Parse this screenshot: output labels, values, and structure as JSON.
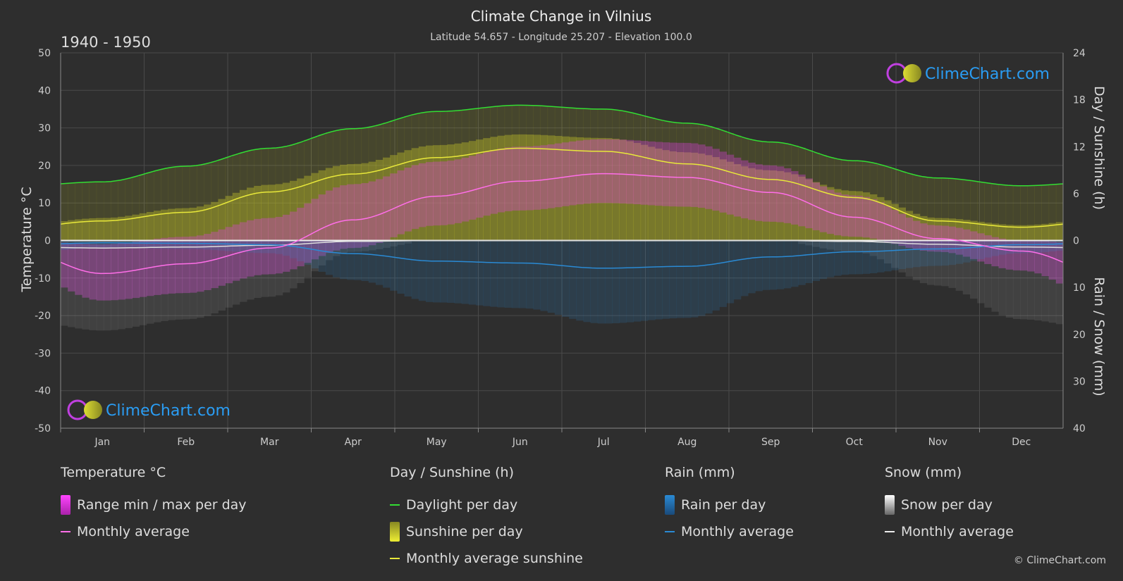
{
  "title": "Climate Change in Vilnius",
  "subtitle": "Latitude 54.657 - Longitude 25.207 - Elevation 100.0",
  "period": "1940 - 1950",
  "brand": "ClimeChart.com",
  "copyright": "© ClimeChart.com",
  "colors": {
    "background": "#2e2e2e",
    "temp_avg": "#ff6ee8",
    "temp_range": "#e040e0",
    "daylight": "#33dd33",
    "sunshine_avg": "#e8e83a",
    "sunshine_bar": "#b5b52a",
    "rain": "#2a8ad4",
    "snow": "#cccccc",
    "brand_text": "#2a9df4"
  },
  "chart_data": {
    "type": "line",
    "x": [
      "Jan",
      "Feb",
      "Mar",
      "Apr",
      "May",
      "Jun",
      "Jul",
      "Aug",
      "Sep",
      "Oct",
      "Nov",
      "Dec"
    ],
    "axes": {
      "left": {
        "label": "Temperature °C",
        "min": -50,
        "max": 50,
        "ticks": [
          "50",
          "40",
          "30",
          "20",
          "10",
          "0",
          "-10",
          "-20",
          "-30",
          "-40",
          "-50"
        ]
      },
      "right_top": {
        "label": "Day / Sunshine (h)",
        "min": 0,
        "max": 24,
        "ticks": [
          "24",
          "18",
          "12",
          "6",
          "0"
        ]
      },
      "right_bottom": {
        "label": "Rain / Snow (mm)",
        "min": 0,
        "max": 40,
        "ticks": [
          "10",
          "20",
          "30",
          "40"
        ]
      }
    },
    "series": [
      {
        "name": "Daylight per day",
        "unit": "h",
        "values": [
          7.5,
          9.5,
          11.8,
          14.3,
          16.5,
          17.3,
          16.8,
          15.0,
          12.6,
          10.2,
          8.0,
          7.0
        ]
      },
      {
        "name": "Monthly average sunshine",
        "unit": "h",
        "values": [
          2.5,
          3.6,
          6.2,
          8.5,
          10.6,
          11.8,
          11.4,
          9.8,
          7.8,
          5.5,
          2.5,
          1.7
        ]
      },
      {
        "name": "Monthly average temperature",
        "unit": "°C",
        "values": [
          -8.8,
          -6.2,
          -2.0,
          5.5,
          11.8,
          15.8,
          17.8,
          16.8,
          12.8,
          6.2,
          0.5,
          -2.8
        ]
      },
      {
        "name": "Monthly average rain",
        "unit": "mm",
        "values": [
          0.5,
          0.6,
          0.9,
          2.8,
          4.4,
          4.8,
          5.9,
          5.5,
          3.5,
          2.4,
          1.8,
          0.9
        ]
      },
      {
        "name": "Monthly average snow",
        "unit": "mm",
        "values": [
          1.6,
          1.4,
          1.0,
          0.2,
          0.0,
          0.0,
          0.0,
          0.0,
          0.0,
          0.2,
          0.8,
          1.4
        ]
      },
      {
        "name": "Daily temperature max",
        "unit": "°C",
        "values": [
          -1,
          1,
          6,
          15,
          21,
          25,
          27,
          26,
          20,
          12,
          4,
          0
        ]
      },
      {
        "name": "Daily temperature min",
        "unit": "°C",
        "values": [
          -16,
          -14,
          -9,
          -2,
          4,
          8,
          10,
          9,
          5,
          1,
          -3,
          -8
        ]
      }
    ]
  },
  "legend": {
    "temperature": {
      "title": "Temperature °C",
      "items": [
        "Range min / max per day",
        "Monthly average"
      ]
    },
    "sunshine": {
      "title": "Day / Sunshine (h)",
      "items": [
        "Daylight per day",
        "Sunshine per day",
        "Monthly average sunshine"
      ]
    },
    "rain": {
      "title": "Rain (mm)",
      "items": [
        "Rain per day",
        "Monthly average"
      ]
    },
    "snow": {
      "title": "Snow (mm)",
      "items": [
        "Snow per day",
        "Monthly average"
      ]
    }
  }
}
